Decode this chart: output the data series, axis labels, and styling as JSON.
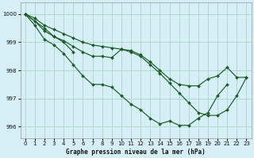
{
  "title": "Graphe pression niveau de la mer (hPa)",
  "bg_color": "#d6eef5",
  "grid_color": "#b0d8cc",
  "line_color": "#1a5c28",
  "marker_color": "#1a5c28",
  "xlim": [
    -0.5,
    23.5
  ],
  "ylim": [
    995.6,
    1000.4
  ],
  "yticks": [
    996,
    997,
    998,
    999,
    1000
  ],
  "xticks": [
    0,
    1,
    2,
    3,
    4,
    5,
    6,
    7,
    8,
    9,
    10,
    11,
    12,
    13,
    14,
    15,
    16,
    17,
    18,
    19,
    20,
    21,
    22,
    23
  ],
  "lines": [
    {
      "x": [
        0,
        1,
        2,
        3,
        4,
        5,
        6,
        7,
        8,
        9,
        10,
        11,
        12,
        13,
        14,
        15,
        16,
        17,
        18,
        19,
        20,
        21
      ],
      "y": [
        1000.0,
        999.6,
        999.1,
        998.9,
        998.6,
        998.2,
        997.8,
        997.5,
        997.5,
        997.4,
        997.1,
        996.8,
        996.6,
        996.3,
        996.1,
        996.2,
        996.05,
        996.05,
        996.3,
        996.5,
        997.1,
        997.5
      ]
    },
    {
      "x": [
        0,
        2,
        3,
        4,
        5
      ],
      "y": [
        1000.0,
        999.5,
        999.2,
        999.0,
        998.65
      ]
    },
    {
      "x": [
        0,
        1,
        2,
        3,
        4,
        5,
        6,
        7,
        8,
        9,
        10,
        11,
        12,
        13,
        14,
        15,
        16,
        17,
        18,
        19,
        20,
        21,
        22,
        23
      ],
      "y": [
        1000.0,
        999.75,
        999.4,
        999.2,
        999.05,
        998.85,
        998.65,
        998.5,
        998.5,
        998.45,
        998.75,
        998.7,
        998.55,
        998.3,
        998.0,
        997.7,
        997.5,
        997.45,
        997.45,
        997.7,
        997.8,
        998.1,
        997.75,
        997.75
      ]
    },
    {
      "x": [
        0,
        1,
        2,
        3,
        4,
        5,
        6,
        7,
        8,
        9,
        10,
        11,
        12,
        13,
        14,
        15,
        16,
        17,
        18,
        19,
        20,
        21,
        22,
        23
      ],
      "y": [
        1000.0,
        999.85,
        999.6,
        999.45,
        999.3,
        999.15,
        999.0,
        998.9,
        998.85,
        998.8,
        998.75,
        998.65,
        998.5,
        998.2,
        997.9,
        997.55,
        997.2,
        996.85,
        996.5,
        996.4,
        996.4,
        996.6,
        997.1,
        997.75
      ]
    }
  ]
}
